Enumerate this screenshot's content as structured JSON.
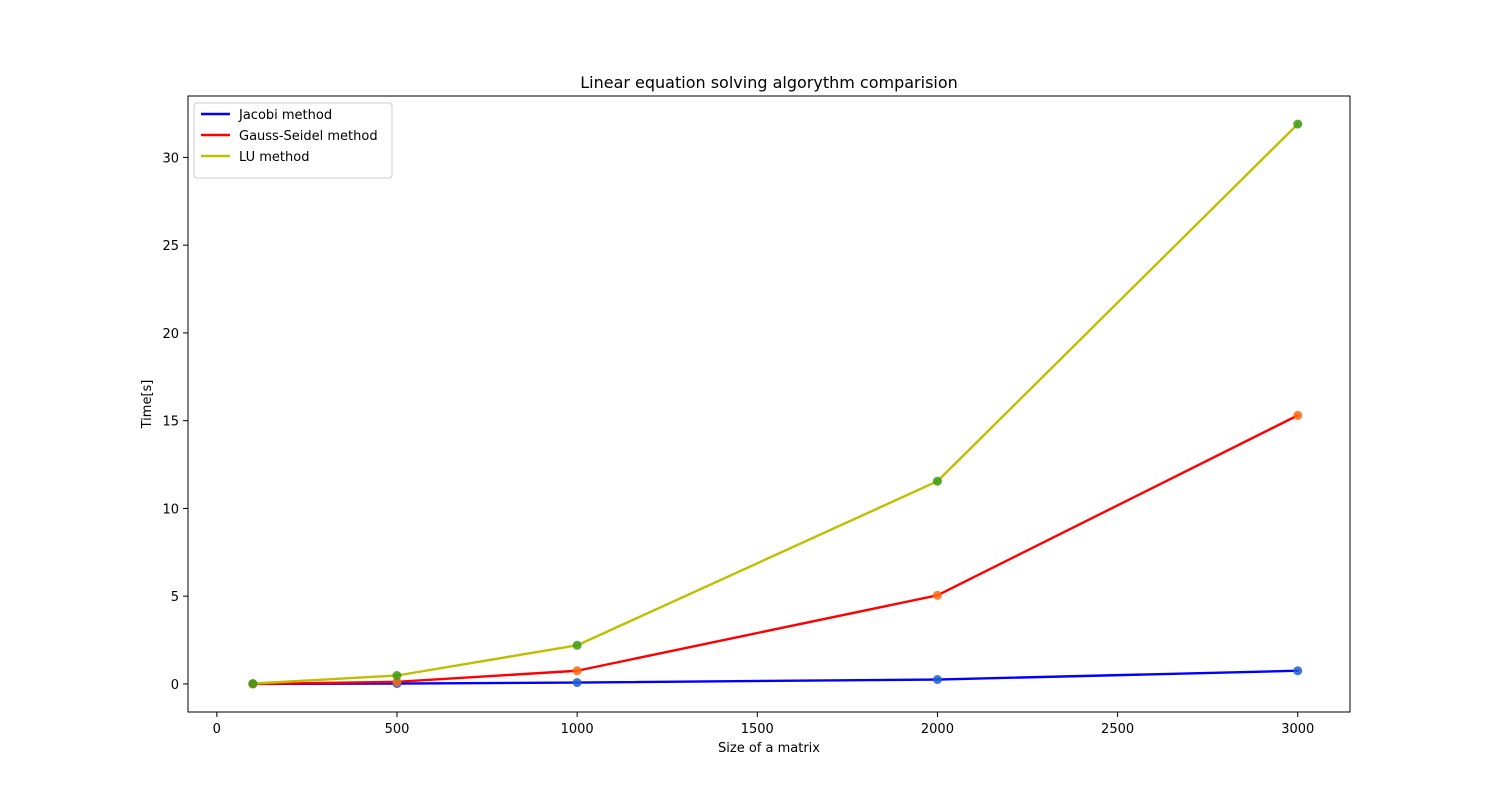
{
  "chart_data": {
    "type": "line",
    "title": "Linear equation solving algorythm comparision",
    "xlabel": "Size of a matrix",
    "ylabel": "Time[s]",
    "xlim": [
      -80,
      3145
    ],
    "ylim": [
      -1.6,
      33.5
    ],
    "xticks": [
      0,
      500,
      1000,
      1500,
      2000,
      2500,
      3000
    ],
    "yticks": [
      0,
      5,
      10,
      15,
      20,
      25,
      30
    ],
    "grid": false,
    "legend_position": "upper-left",
    "x": [
      100,
      500,
      1000,
      2000,
      3000
    ],
    "series": [
      {
        "name": "Jacobi method",
        "color": "#0000ff",
        "marker_color": "#1f5fd0",
        "values": [
          0.0,
          0.02,
          0.08,
          0.25,
          0.75
        ]
      },
      {
        "name": "Gauss-Seidel method",
        "color": "#ff0000",
        "marker_color": "#ff6a10",
        "values": [
          0.0,
          0.12,
          0.75,
          5.05,
          15.3
        ]
      },
      {
        "name": "LU method",
        "color": "#bfbf00",
        "marker_color": "#3a9a10",
        "values": [
          0.02,
          0.48,
          2.2,
          11.55,
          31.9
        ]
      }
    ]
  }
}
